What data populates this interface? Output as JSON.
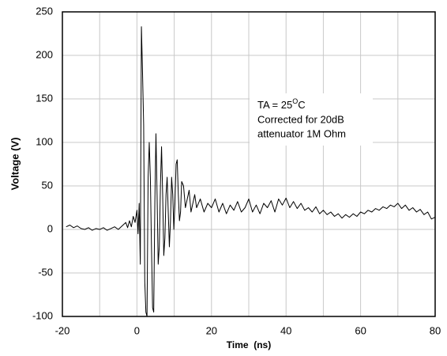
{
  "chart_data": {
    "type": "line",
    "xlabel": "Time  (ns)",
    "ylabel": "Voltage (V)",
    "annotation": {
      "line1": [
        "TA = 25",
        "O",
        "C"
      ],
      "line2": "Corrected for 20dB",
      "line3": "attenuator 1M Ohm"
    },
    "xlim": [
      -20,
      80
    ],
    "ylim": [
      -100,
      250
    ],
    "xticks": [
      -20,
      0,
      20,
      40,
      60,
      80
    ],
    "xminor": [
      -10,
      10,
      30,
      50,
      70
    ],
    "yticks": [
      -100,
      -50,
      0,
      50,
      100,
      150,
      200,
      250
    ],
    "grid": true,
    "color": "#000000",
    "x": [
      -19,
      -18,
      -17,
      -16,
      -15,
      -14,
      -13,
      -12,
      -11,
      -10,
      -9,
      -8,
      -7,
      -6,
      -5,
      -4,
      -3,
      -2.5,
      -2,
      -1.5,
      -1,
      -0.5,
      0,
      0.3,
      0.6,
      0.9,
      1.2,
      1.5,
      1.8,
      2.1,
      2.4,
      2.7,
      3.0,
      3.3,
      3.6,
      3.9,
      4.2,
      4.5,
      4.8,
      5.1,
      5.4,
      5.7,
      6.0,
      6.3,
      6.6,
      6.9,
      7.2,
      7.5,
      7.8,
      8.1,
      8.4,
      8.7,
      9.0,
      9.3,
      9.6,
      9.9,
      10.2,
      10.5,
      10.8,
      11.1,
      11.4,
      11.7,
      12,
      12.5,
      13,
      13.5,
      14,
      14.5,
      15,
      15.5,
      16,
      17,
      18,
      19,
      20,
      21,
      22,
      23,
      24,
      25,
      26,
      27,
      28,
      29,
      30,
      31,
      32,
      33,
      34,
      35,
      36,
      37,
      38,
      39,
      40,
      41,
      42,
      43,
      44,
      45,
      46,
      47,
      48,
      49,
      50,
      51,
      52,
      53,
      54,
      55,
      56,
      57,
      58,
      59,
      60,
      61,
      62,
      63,
      64,
      65,
      66,
      67,
      68,
      69,
      70,
      71,
      72,
      73,
      74,
      75,
      76,
      77,
      78,
      79,
      80
    ],
    "values": [
      3,
      5,
      2,
      4,
      1,
      0,
      2,
      -1,
      1,
      0,
      2,
      -1,
      1,
      3,
      0,
      4,
      8,
      2,
      10,
      3,
      15,
      8,
      22,
      -5,
      30,
      -40,
      233,
      180,
      120,
      -60,
      -95,
      -100,
      60,
      100,
      60,
      -20,
      -90,
      -95,
      30,
      110,
      40,
      -40,
      -20,
      50,
      95,
      40,
      -30,
      -10,
      40,
      60,
      20,
      -20,
      10,
      60,
      40,
      0,
      30,
      75,
      80,
      40,
      10,
      20,
      55,
      50,
      25,
      35,
      45,
      20,
      30,
      40,
      25,
      35,
      20,
      30,
      25,
      35,
      20,
      30,
      18,
      28,
      22,
      32,
      20,
      25,
      35,
      20,
      28,
      18,
      30,
      25,
      33,
      20,
      35,
      28,
      36,
      25,
      32,
      24,
      30,
      22,
      25,
      20,
      26,
      18,
      22,
      17,
      20,
      15,
      18,
      13,
      17,
      14,
      18,
      15,
      20,
      18,
      22,
      20,
      24,
      22,
      26,
      24,
      28,
      26,
      30,
      24,
      28,
      22,
      25,
      20,
      23,
      17,
      20,
      12,
      14
    ]
  }
}
